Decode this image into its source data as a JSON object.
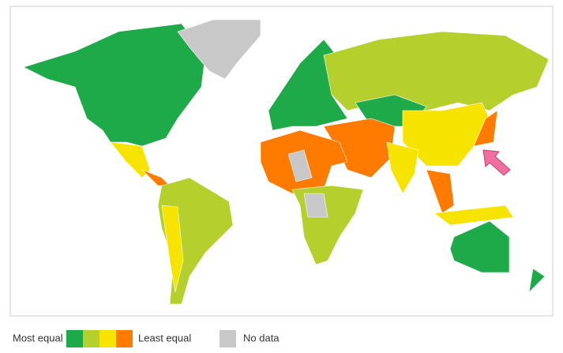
{
  "legend": {
    "low_label": "Most equal",
    "high_label": "Least equal",
    "scale_colors": [
      "#1faa4a",
      "#b5cf2c",
      "#f7e300",
      "#ff7b00"
    ],
    "no_data_label": "No data",
    "no_data_color": "#c8c8c8"
  }
}
